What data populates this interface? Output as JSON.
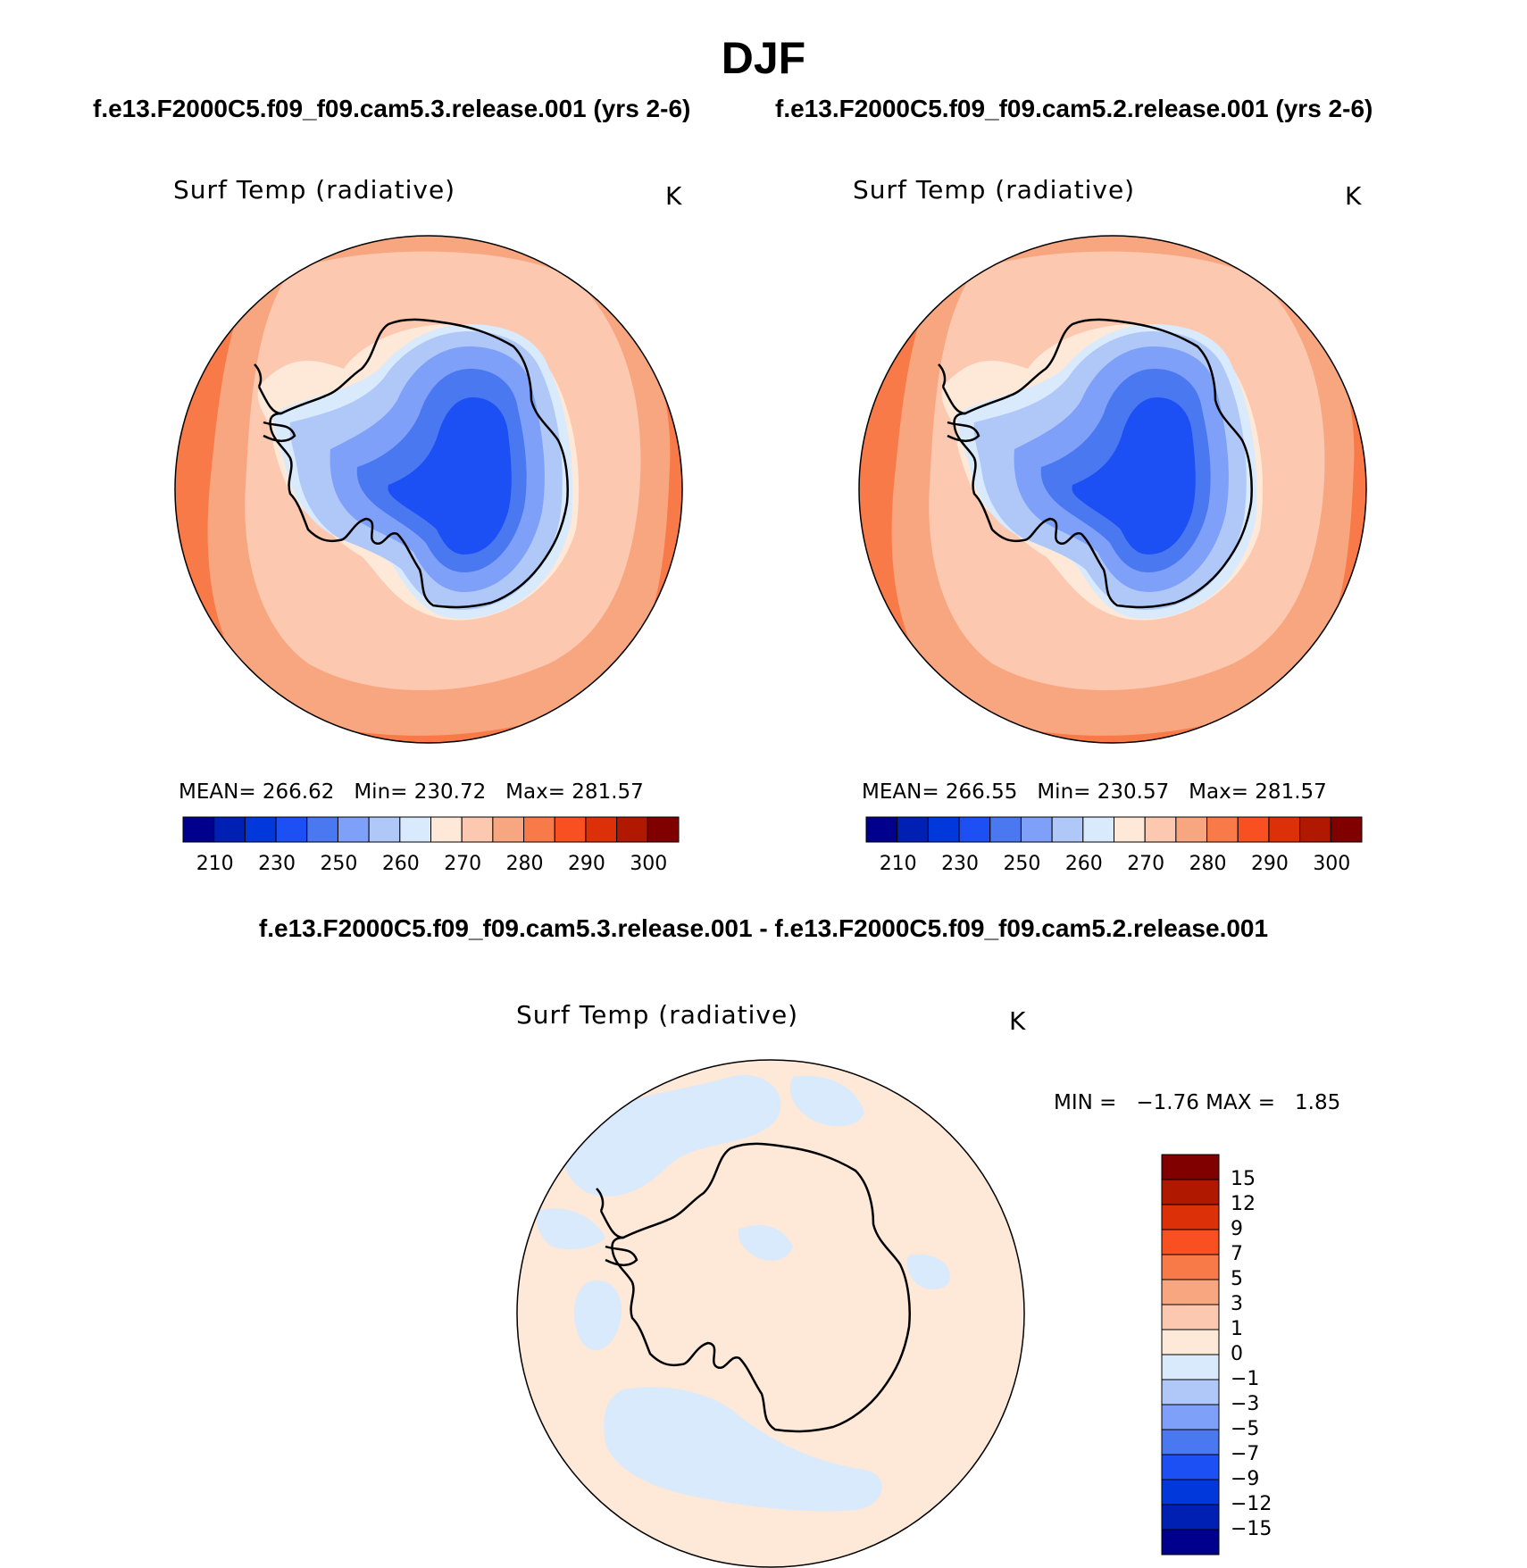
{
  "title": "DJF",
  "panels": [
    {
      "case": "f.e13.F2000C5.f09_f09.cam5.3.release.001 (yrs 2-6)",
      "variable": "Surf Temp (radiative)",
      "units": "K",
      "mean_label": "MEAN=",
      "mean_value": "266.62",
      "min_label": "Min=",
      "min_value": "230.72",
      "max_label": "Max=",
      "max_value": "281.57"
    },
    {
      "case": "f.e13.F2000C5.f09_f09.cam5.2.release.001 (yrs 2-6)",
      "variable": "Surf Temp (radiative)",
      "units": "K",
      "mean_label": "MEAN=",
      "mean_value": "266.55",
      "min_label": "Min=",
      "min_value": "230.57",
      "max_label": "Max=",
      "max_value": "281.57"
    }
  ],
  "diff_panel": {
    "header": "f.e13.F2000C5.f09_f09.cam5.3.release.001 - f.e13.F2000C5.f09_f09.cam5.2.release.001",
    "variable": "Surf Temp (radiative)",
    "units": "K",
    "min_label": "MIN =",
    "min_value": "−1.76",
    "max_label": "MAX =",
    "max_value": "1.85"
  },
  "colorbar_abs": {
    "colors": [
      "#00008c",
      "#0020b4",
      "#0038dc",
      "#1c50f4",
      "#4a78f0",
      "#7ea0f8",
      "#b0c8f8",
      "#d8eafc",
      "#fee8d8",
      "#fcc8b0",
      "#f8a680",
      "#f87a48",
      "#f85020",
      "#dc3008",
      "#b01800",
      "#800000"
    ],
    "ticks": [
      "210",
      "230",
      "250",
      "260",
      "270",
      "280",
      "290",
      "300"
    ]
  },
  "colorbar_diff": {
    "colors": [
      "#00008c",
      "#0020b4",
      "#0038dc",
      "#1c50f4",
      "#4a78f0",
      "#7ea0f8",
      "#b0c8f8",
      "#d8eafc",
      "#fee8d8",
      "#fcc8b0",
      "#f8a680",
      "#f87a48",
      "#f85020",
      "#dc3008",
      "#b01800",
      "#800000"
    ],
    "ticks": [
      "15",
      "12",
      "9",
      "7",
      "5",
      "3",
      "1",
      "0",
      "−1",
      "−3",
      "−5",
      "−7",
      "−9",
      "−12",
      "−15"
    ]
  },
  "map_colors": {
    "warm_outer": "#f87a48",
    "warm_mid": "#f8a680",
    "warm_light": "#fcc8b0",
    "near_270": "#fee8d8",
    "cold_1": "#d8eafc",
    "cold_2": "#b0c8f8",
    "cold_3": "#7ea0f8",
    "cold_4": "#4a78f0",
    "cold_5": "#1c50f4",
    "diff_pos": "#fee8d8",
    "diff_neg": "#d8eafc"
  }
}
